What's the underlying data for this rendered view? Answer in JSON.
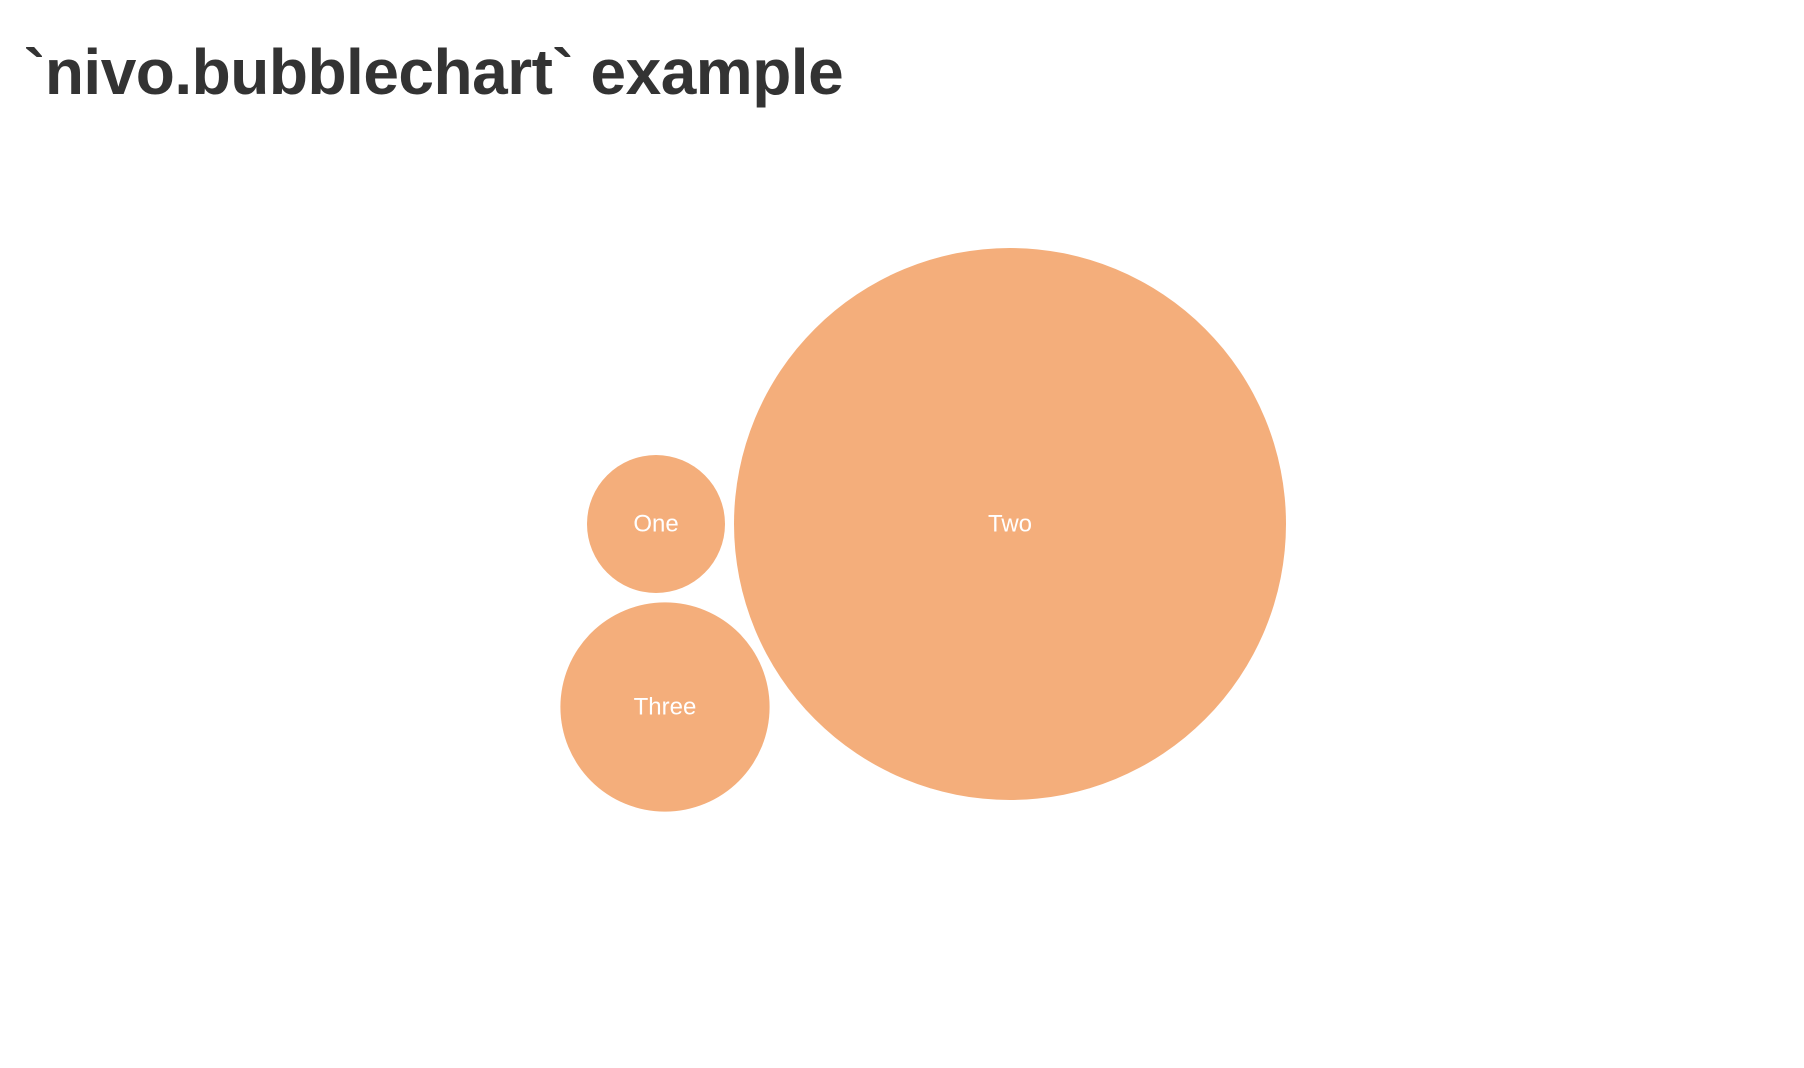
{
  "page": {
    "title": "`nivo.bubblechart` example"
  },
  "chart_data": {
    "type": "bubble",
    "title": "",
    "color": "#f4ae7b",
    "label_color": "#ffffff",
    "series": [
      {
        "name": "",
        "points": [
          {
            "label": "One",
            "value": 1
          },
          {
            "label": "Two",
            "value": 16
          },
          {
            "label": "Three",
            "value": 2.3
          }
        ]
      }
    ]
  }
}
